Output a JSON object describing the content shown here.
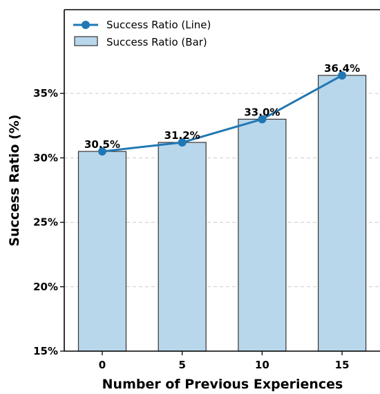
{
  "chart_data": {
    "type": "bar",
    "title": "",
    "xlabel": "Number of Previous Experiences",
    "ylabel": "Success Ratio (%)",
    "categories": [
      "0",
      "5",
      "10",
      "15"
    ],
    "ylim": [
      15,
      41.5
    ],
    "yticks": [
      15,
      20,
      25,
      30,
      35
    ],
    "ytick_labels": [
      "15%",
      "20%",
      "25%",
      "30%",
      "35%"
    ],
    "grid": "horizontal dashed",
    "legend_position": "top-left",
    "series": [
      {
        "name": "Success Ratio (Line)",
        "kind": "line",
        "values": [
          30.5,
          31.2,
          33.0,
          36.4
        ],
        "color": "#1f77b4"
      },
      {
        "name": "Success Ratio (Bar)",
        "kind": "bar",
        "values": [
          30.5,
          31.2,
          33.0,
          36.4
        ],
        "color": "#b9d7ea",
        "edge_color": "#333333"
      }
    ],
    "data_labels": [
      "30.5%",
      "31.2%",
      "33.0%",
      "36.4%"
    ]
  }
}
